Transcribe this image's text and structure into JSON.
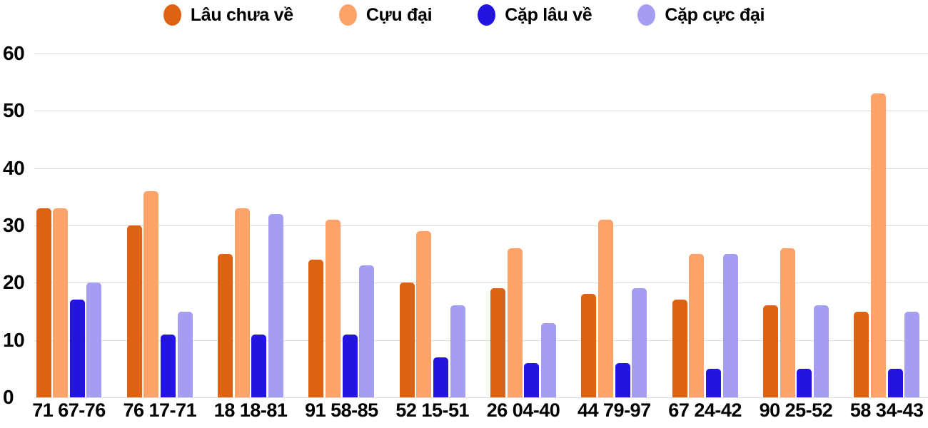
{
  "chart_data": {
    "type": "bar",
    "title": "",
    "xlabel": "",
    "ylabel": "",
    "categories": [
      "71 67-76",
      "76 17-71",
      "18 18-81",
      "91 58-85",
      "52 15-51",
      "26 04-40",
      "44 79-97",
      "67 24-42",
      "90 25-52",
      "58 34-43"
    ],
    "series": [
      {
        "name": "Lâu chưa về",
        "color": "#DD6213",
        "values": [
          33,
          30,
          25,
          24,
          20,
          19,
          18,
          17,
          16,
          15
        ]
      },
      {
        "name": "Cựu đại",
        "color": "#FCA36A",
        "values": [
          33,
          36,
          33,
          31,
          29,
          26,
          31,
          25,
          26,
          53
        ]
      },
      {
        "name": "Cặp lâu về",
        "color": "#2314DF",
        "values": [
          17,
          11,
          11,
          11,
          7,
          6,
          6,
          5,
          5,
          5
        ]
      },
      {
        "name": "Cặp cực đại",
        "color": "#A49DF2",
        "values": [
          20,
          15,
          32,
          23,
          16,
          13,
          19,
          25,
          16,
          15
        ]
      }
    ],
    "ylim": [
      0,
      60
    ],
    "yticks": [
      0,
      10,
      20,
      30,
      40,
      50,
      60
    ],
    "grid": true,
    "legend_position": "top"
  },
  "colors": {
    "background": "#FFFFFF",
    "gridline": "#DCDCDC",
    "axis_text": "#000000"
  }
}
